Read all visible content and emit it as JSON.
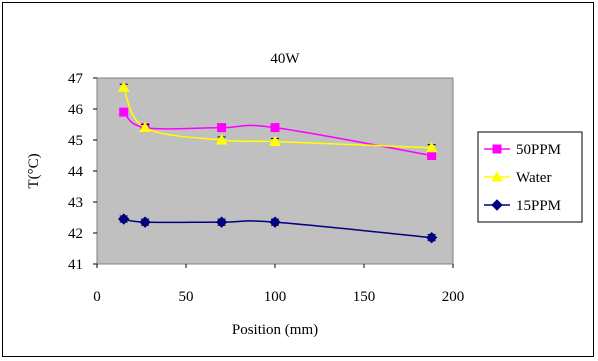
{
  "chart_data": {
    "type": "line",
    "title": "40W",
    "xlabel": "Position (mm)",
    "ylabel": "T(°C)",
    "xlim": [
      0,
      200
    ],
    "ylim": [
      41,
      47
    ],
    "x_ticks": [
      "0",
      "50",
      "100",
      "150",
      "200"
    ],
    "y_ticks": [
      "41",
      "42",
      "43",
      "44",
      "45",
      "46",
      "47"
    ],
    "grid": false,
    "plot_background": "#c0c0c0",
    "legend_position": "right",
    "error_bars": true,
    "series": [
      {
        "name": "50PPM",
        "color": "#ff00ff",
        "marker": "square",
        "x": [
          15,
          27,
          70,
          100,
          188
        ],
        "y": [
          45.9,
          45.4,
          45.4,
          45.4,
          44.5
        ],
        "err": [
          0.1,
          0.1,
          0.1,
          0.1,
          0.1
        ]
      },
      {
        "name": "Water",
        "color": "#ffff00",
        "marker": "triangle",
        "x": [
          15,
          27,
          70,
          100,
          188
        ],
        "y": [
          46.7,
          45.4,
          45.0,
          44.95,
          44.75
        ],
        "err": [
          0.1,
          0.1,
          0.1,
          0.1,
          0.1
        ]
      },
      {
        "name": "15PPM",
        "color": "#000080",
        "marker": "diamond",
        "x": [
          15,
          27,
          70,
          100,
          188
        ],
        "y": [
          42.45,
          42.35,
          42.35,
          42.35,
          41.85
        ],
        "err": [
          0.1,
          0.1,
          0.1,
          0.1,
          0.1
        ]
      }
    ]
  }
}
